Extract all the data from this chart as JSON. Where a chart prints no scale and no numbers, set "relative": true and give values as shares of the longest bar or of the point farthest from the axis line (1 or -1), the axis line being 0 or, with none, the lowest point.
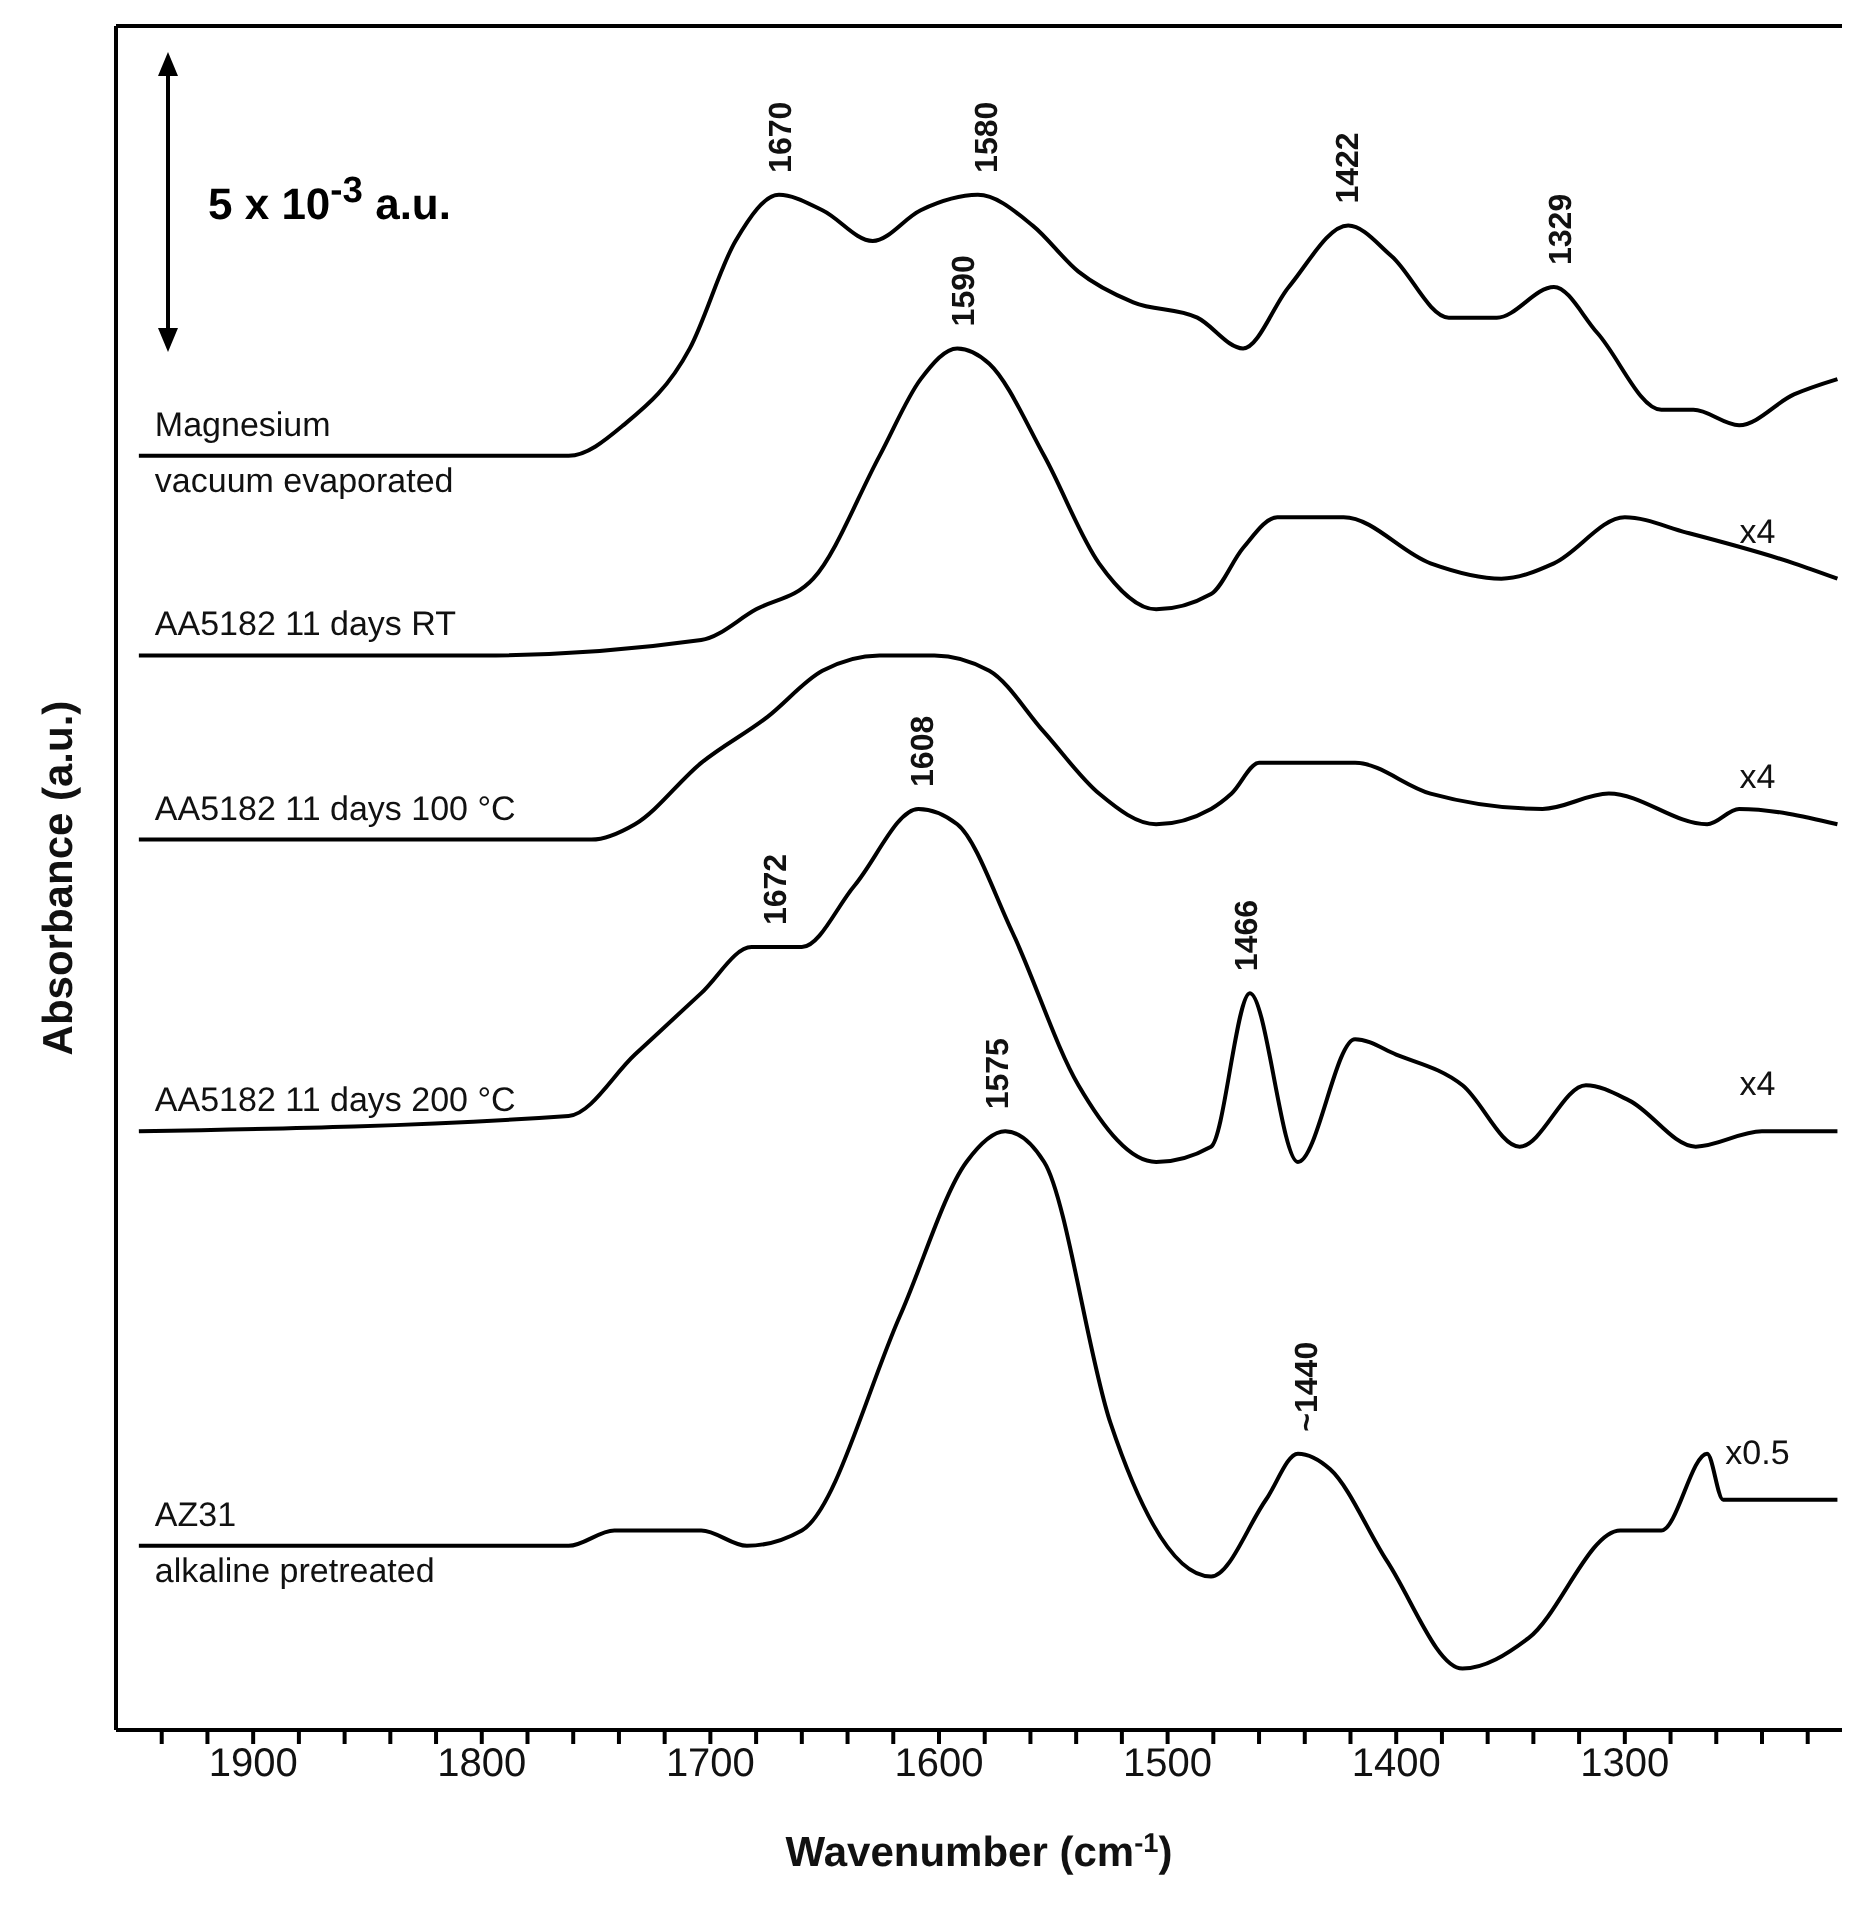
{
  "chart_data": {
    "type": "line",
    "relative": true,
    "xlabel": "Wavenumber (cm$^{-1}$)",
    "ylabel": "Absorbance (a.u.)",
    "xlim": [
      1960,
      1205
    ],
    "xticks": [
      {
        "value": 1940,
        "label": null
      },
      {
        "value": 1920,
        "label": null
      },
      1900,
      {
        "value": 1880,
        "label": null
      },
      {
        "value": 1860,
        "label": null
      },
      {
        "value": 1840,
        "label": null
      },
      {
        "value": 1820,
        "label": null
      },
      1800,
      {
        "value": 1780,
        "label": null
      },
      {
        "value": 1760,
        "label": null
      },
      {
        "value": 1740,
        "label": null
      },
      {
        "value": 1720,
        "label": null
      },
      1700,
      {
        "value": 1680,
        "label": null
      },
      {
        "value": 1660,
        "label": null
      },
      {
        "value": 1640,
        "label": null
      },
      {
        "value": 1620,
        "label": null
      },
      1600,
      {
        "value": 1580,
        "label": null
      },
      {
        "value": 1560,
        "label": null
      },
      {
        "value": 1540,
        "label": null
      },
      {
        "value": 1520,
        "label": null
      },
      1500,
      {
        "value": 1480,
        "label": null
      },
      {
        "value": 1460,
        "label": null
      },
      {
        "value": 1440,
        "label": null
      },
      {
        "value": 1420,
        "label": null
      },
      1400,
      {
        "value": 1380,
        "label": null
      },
      {
        "value": 1360,
        "label": null
      },
      {
        "value": 1340,
        "label": null
      },
      {
        "value": 1320,
        "label": null
      },
      1300,
      {
        "value": 1280,
        "label": null
      },
      {
        "value": 1260,
        "label": null
      },
      {
        "value": 1240,
        "label": null
      },
      {
        "value": 1220,
        "label": null
      }
    ],
    "grid": false,
    "legend": false,
    "marker": "none",
    "line_style": "solid",
    "series": [
      {
        "name": "Magnesium vacuum evaporated",
        "color": "#000000",
        "x": [
          1950,
          1762,
          1738,
          1709,
          1689,
          1670,
          1651,
          1629,
          1608,
          1583,
          1559,
          1539,
          1515,
          1487,
          1467,
          1447,
          1421,
          1402,
          1377,
          1356,
          1331,
          1312,
          1284,
          1270,
          1250,
          1226,
          1207
        ],
        "values": [
          0.83,
          0.83,
          0.85,
          0.9,
          0.97,
          1.0,
          0.99,
          0.97,
          0.99,
          1.0,
          0.98,
          0.95,
          0.93,
          0.92,
          0.9,
          0.94,
          0.98,
          0.96,
          0.92,
          0.92,
          0.94,
          0.91,
          0.86,
          0.86,
          0.85,
          0.87,
          0.88
        ]
      },
      {
        "name": "AA5182 11 days RT",
        "color": "#000000",
        "x": [
          1950,
          1800,
          1704,
          1680,
          1655,
          1626,
          1608,
          1592,
          1578,
          1554,
          1530,
          1505,
          1481,
          1467,
          1452,
          1423,
          1385,
          1354,
          1331,
          1300,
          1273,
          1226,
          1207
        ],
        "values": [
          0.7,
          0.7,
          0.71,
          0.73,
          0.75,
          0.83,
          0.88,
          0.9,
          0.89,
          0.83,
          0.76,
          0.73,
          0.74,
          0.77,
          0.79,
          0.79,
          0.76,
          0.75,
          0.76,
          0.79,
          0.78,
          0.76,
          0.75
        ]
      },
      {
        "name": "AA5182 11 days 100 °C",
        "color": "#000000",
        "x": [
          1950,
          1752,
          1733,
          1704,
          1675,
          1651,
          1626,
          1602,
          1578,
          1554,
          1530,
          1505,
          1481,
          1472,
          1460,
          1418,
          1385,
          1336,
          1307,
          1264,
          1250,
          1207
        ],
        "values": [
          0.58,
          0.58,
          0.59,
          0.63,
          0.66,
          0.69,
          0.7,
          0.7,
          0.69,
          0.65,
          0.61,
          0.59,
          0.6,
          0.61,
          0.63,
          0.63,
          0.61,
          0.6,
          0.61,
          0.59,
          0.6,
          0.59
        ]
      },
      {
        "name": "AA5182 11 days 200 °C",
        "color": "#000000",
        "x": [
          1950,
          1762,
          1733,
          1704,
          1682,
          1660,
          1637,
          1609,
          1592,
          1568,
          1539,
          1505,
          1481,
          1464,
          1443,
          1418,
          1400,
          1371,
          1346,
          1317,
          1298,
          1269,
          1240,
          1207
        ],
        "values": [
          0.39,
          0.4,
          0.44,
          0.48,
          0.51,
          0.51,
          0.55,
          0.6,
          0.59,
          0.52,
          0.42,
          0.37,
          0.38,
          0.48,
          0.37,
          0.45,
          0.44,
          0.42,
          0.38,
          0.42,
          0.41,
          0.38,
          0.39,
          0.39
        ]
      },
      {
        "name": "AZ31 alkaline pretreated",
        "color": "#000000",
        "x": [
          1950,
          1762,
          1742,
          1704,
          1684,
          1660,
          1617,
          1588,
          1571,
          1554,
          1525,
          1481,
          1457,
          1443,
          1429,
          1404,
          1371,
          1342,
          1302,
          1284,
          1264,
          1257,
          1226,
          1207
        ],
        "values": [
          0.12,
          0.12,
          0.13,
          0.13,
          0.12,
          0.13,
          0.27,
          0.37,
          0.39,
          0.37,
          0.2,
          0.1,
          0.15,
          0.18,
          0.17,
          0.11,
          0.04,
          0.06,
          0.13,
          0.13,
          0.18,
          0.15,
          0.15,
          0.15
        ]
      }
    ],
    "annotations": [
      "5 x 10$^{-3}$ a.u.",
      "x4",
      "x4",
      "x4",
      "x0.5",
      {
        "text": "1670",
        "x": 1670,
        "y": 1.0
      },
      {
        "text": "1580",
        "x": 1580,
        "y": 1.0
      },
      {
        "text": "1422",
        "x": 1422,
        "y": 0.98
      },
      {
        "text": "1329",
        "x": 1329,
        "y": 0.94
      },
      {
        "text": "1590",
        "x": 1590,
        "y": 0.9
      },
      {
        "text": "1608",
        "x": 1608,
        "y": 0.6
      },
      {
        "text": "1672",
        "x": 1672,
        "y": 0.51
      },
      {
        "text": "1466",
        "x": 1466,
        "y": 0.48
      },
      {
        "text": "1575",
        "x": 1575,
        "y": 0.39
      },
      {
        "text": "~1440",
        "x": 1440,
        "y": 0.18
      }
    ]
  }
}
